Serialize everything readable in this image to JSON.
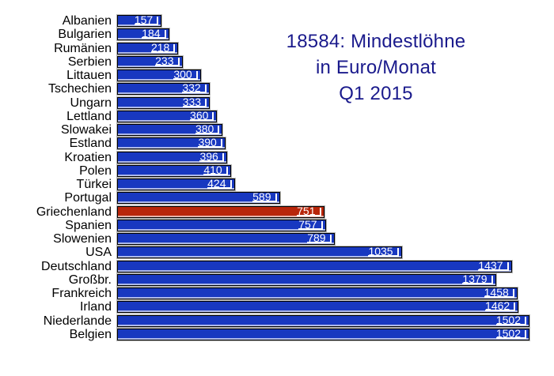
{
  "title": {
    "lines": [
      "18584: Mindestlöhne",
      "in Euro/Monat",
      "Q1 2015"
    ]
  },
  "colors": {
    "bar": "#1838c0",
    "highlight_bar": "#b8260a",
    "bar_border": "#000000",
    "bar_rim": "#b5b5b5",
    "value_text": "#ffffff",
    "label_text": "#000000",
    "title_text": "#1a1a8c",
    "background": "#ffffff"
  },
  "chart_data": {
    "type": "bar",
    "orientation": "horizontal",
    "title": "18584: Mindestlöhne in Euro/Monat Q1 2015",
    "categories": [
      "Albanien",
      "Bulgarien",
      "Rumänien",
      "Serbien",
      "Littauen",
      "Tschechien",
      "Ungarn",
      "Lettland",
      "Slowakei",
      "Estland",
      "Kroatien",
      "Polen",
      "Türkei",
      "Portugal",
      "Griechenland",
      "Spanien",
      "Slowenien",
      "USA",
      "Deutschland",
      "Großbr.",
      "Frankreich",
      "Irland",
      "Niederlande",
      "Belgien"
    ],
    "values": [
      157,
      184,
      218,
      233,
      300,
      332,
      333,
      360,
      380,
      390,
      396,
      410,
      424,
      589,
      751,
      757,
      789,
      1035,
      1437,
      1379,
      1458,
      1462,
      1502,
      1502
    ],
    "highlighted_category": "Griechenland",
    "value_labels_shown": true,
    "xlim": [
      0,
      1502
    ],
    "grid": false,
    "legend": "none",
    "axes_shown": false
  }
}
